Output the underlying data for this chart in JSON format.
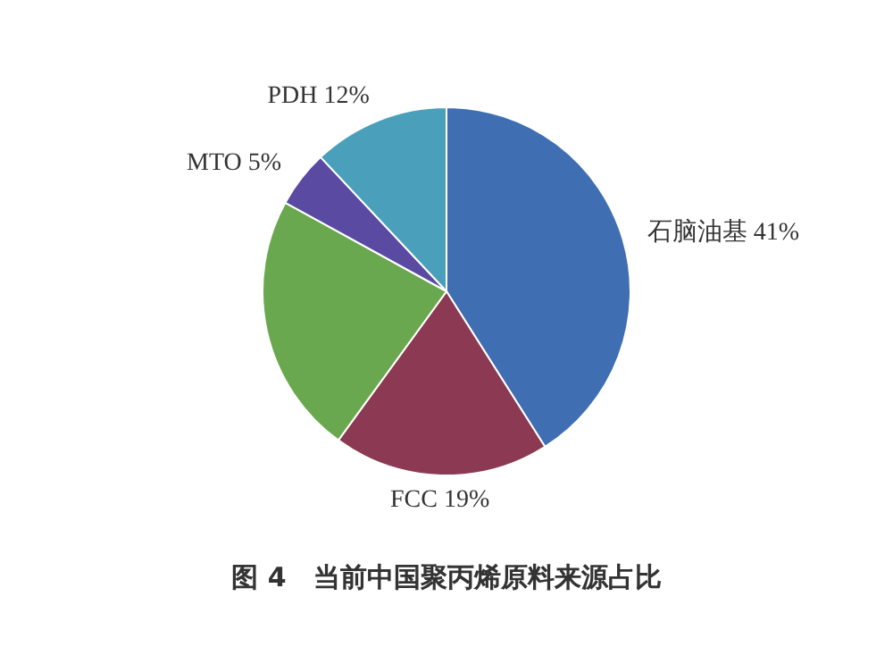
{
  "chart_data": {
    "type": "pie",
    "title": "图 4　当前中国聚丙烯原料来源占比",
    "categories": [
      "石脑油基",
      "FCC",
      null,
      "MTO",
      "PDH"
    ],
    "values": [
      41,
      19,
      23,
      5,
      12
    ],
    "value_labels": [
      "41%",
      "19%",
      null,
      "5%",
      "12%"
    ],
    "colors": [
      "#3f6fb2",
      "#8c3a53",
      "#6aa84f",
      "#5a4aa2",
      "#4a9fbb"
    ]
  }
}
